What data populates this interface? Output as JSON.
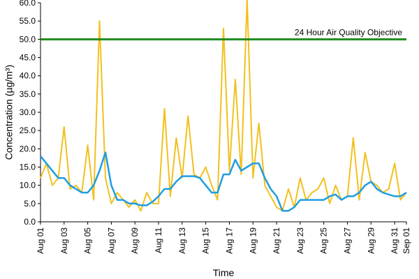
{
  "chart_data": {
    "type": "line",
    "title": "",
    "xlabel": "Time",
    "ylabel": "Concentration (µg/m³)",
    "ylim": [
      0,
      60
    ],
    "xlim": [
      "2023-08-01",
      "2023-09-01"
    ],
    "grid": false,
    "y_ticks": [
      "0.0",
      "5.0",
      "10.0",
      "15.0",
      "20.0",
      "25.0",
      "30.0",
      "35.0",
      "40.0",
      "45.0",
      "50.0",
      "55.0",
      "60.0"
    ],
    "x_ticks": [
      "Aug 01",
      "Aug 03",
      "Aug 05",
      "Aug 07",
      "Aug 09",
      "Aug 11",
      "Aug 13",
      "Aug 15",
      "Aug 17",
      "Aug 19",
      "Aug 21",
      "Aug 23",
      "Aug 25",
      "Aug 27",
      "Aug 29",
      "Aug 31",
      "Sep 01"
    ],
    "series": [
      {
        "color": "#f2c01e",
        "x": [
          "2023-08-01",
          "2023-08-01T12",
          "2023-08-02",
          "2023-08-02T12",
          "2023-08-03",
          "2023-08-03T12",
          "2023-08-04",
          "2023-08-04T12",
          "2023-08-05",
          "2023-08-05T12",
          "2023-08-06",
          "2023-08-06T12",
          "2023-08-07",
          "2023-08-07T12",
          "2023-08-08",
          "2023-08-08T12",
          "2023-08-09",
          "2023-08-09T12",
          "2023-08-10",
          "2023-08-10T12",
          "2023-08-11",
          "2023-08-11T12",
          "2023-08-12",
          "2023-08-12T12",
          "2023-08-13",
          "2023-08-13T12",
          "2023-08-14",
          "2023-08-14T12",
          "2023-08-15",
          "2023-08-15T12",
          "2023-08-16",
          "2023-08-16T12",
          "2023-08-17",
          "2023-08-17T12",
          "2023-08-18",
          "2023-08-18T12",
          "2023-08-19",
          "2023-08-19T12",
          "2023-08-20",
          "2023-08-20T12",
          "2023-08-21",
          "2023-08-21T12",
          "2023-08-22",
          "2023-08-22T12",
          "2023-08-23",
          "2023-08-23T12",
          "2023-08-24",
          "2023-08-24T12",
          "2023-08-25",
          "2023-08-25T12",
          "2023-08-26",
          "2023-08-26T12",
          "2023-08-27",
          "2023-08-27T12",
          "2023-08-28",
          "2023-08-28T12",
          "2023-08-29",
          "2023-08-29T12",
          "2023-08-30",
          "2023-08-30T12",
          "2023-08-31",
          "2023-08-31T12",
          "2023-09-01"
        ],
        "values": [
          12,
          16,
          10,
          12,
          26,
          9,
          10,
          8,
          21,
          6,
          55,
          12,
          5,
          8,
          6,
          4,
          6,
          3,
          8,
          5,
          5,
          31,
          7,
          23,
          12,
          29,
          13,
          12,
          15,
          10,
          6,
          53,
          14,
          39,
          13,
          61,
          12,
          27,
          10,
          7,
          4,
          3,
          9,
          4,
          12,
          6,
          8,
          9,
          12,
          5,
          10,
          6,
          7,
          23,
          6,
          19,
          11,
          10,
          8,
          9,
          16,
          6,
          8
        ]
      },
      {
        "color": "#1f9de0",
        "x": [
          "2023-08-01",
          "2023-08-01T12",
          "2023-08-02",
          "2023-08-02T12",
          "2023-08-03",
          "2023-08-03T12",
          "2023-08-04",
          "2023-08-04T12",
          "2023-08-05",
          "2023-08-05T12",
          "2023-08-06",
          "2023-08-06T12",
          "2023-08-07",
          "2023-08-07T12",
          "2023-08-08",
          "2023-08-08T12",
          "2023-08-09",
          "2023-08-09T12",
          "2023-08-10",
          "2023-08-10T12",
          "2023-08-11",
          "2023-08-11T12",
          "2023-08-12",
          "2023-08-12T12",
          "2023-08-13",
          "2023-08-13T12",
          "2023-08-14",
          "2023-08-14T12",
          "2023-08-15",
          "2023-08-15T12",
          "2023-08-16",
          "2023-08-16T12",
          "2023-08-17",
          "2023-08-17T12",
          "2023-08-18",
          "2023-08-18T12",
          "2023-08-19",
          "2023-08-19T12",
          "2023-08-20",
          "2023-08-20T12",
          "2023-08-21",
          "2023-08-21T12",
          "2023-08-22",
          "2023-08-22T12",
          "2023-08-23",
          "2023-08-23T12",
          "2023-08-24",
          "2023-08-24T12",
          "2023-08-25",
          "2023-08-25T12",
          "2023-08-26",
          "2023-08-26T12",
          "2023-08-27",
          "2023-08-27T12",
          "2023-08-28",
          "2023-08-28T12",
          "2023-08-29",
          "2023-08-29T12",
          "2023-08-30",
          "2023-08-30T12",
          "2023-08-31",
          "2023-08-31T12",
          "2023-09-01"
        ],
        "values": [
          18,
          16,
          14,
          12,
          12,
          10,
          9,
          8,
          8,
          10,
          14,
          19,
          10,
          6,
          6,
          5,
          5,
          4.5,
          4.5,
          5.5,
          7,
          9,
          9,
          11,
          12.5,
          12.5,
          12.5,
          12,
          10,
          8,
          8,
          13,
          13,
          17,
          14,
          15,
          16,
          16,
          12,
          9,
          7,
          3,
          3,
          4,
          6,
          6,
          6,
          6,
          6,
          7,
          7.5,
          6,
          7,
          7,
          8,
          10,
          11,
          9,
          8,
          7.5,
          7,
          7,
          8
        ]
      }
    ],
    "reference_line": {
      "y": 50,
      "color": "#1e8a1e",
      "label": "24 Hour Air Quality Objective"
    }
  }
}
